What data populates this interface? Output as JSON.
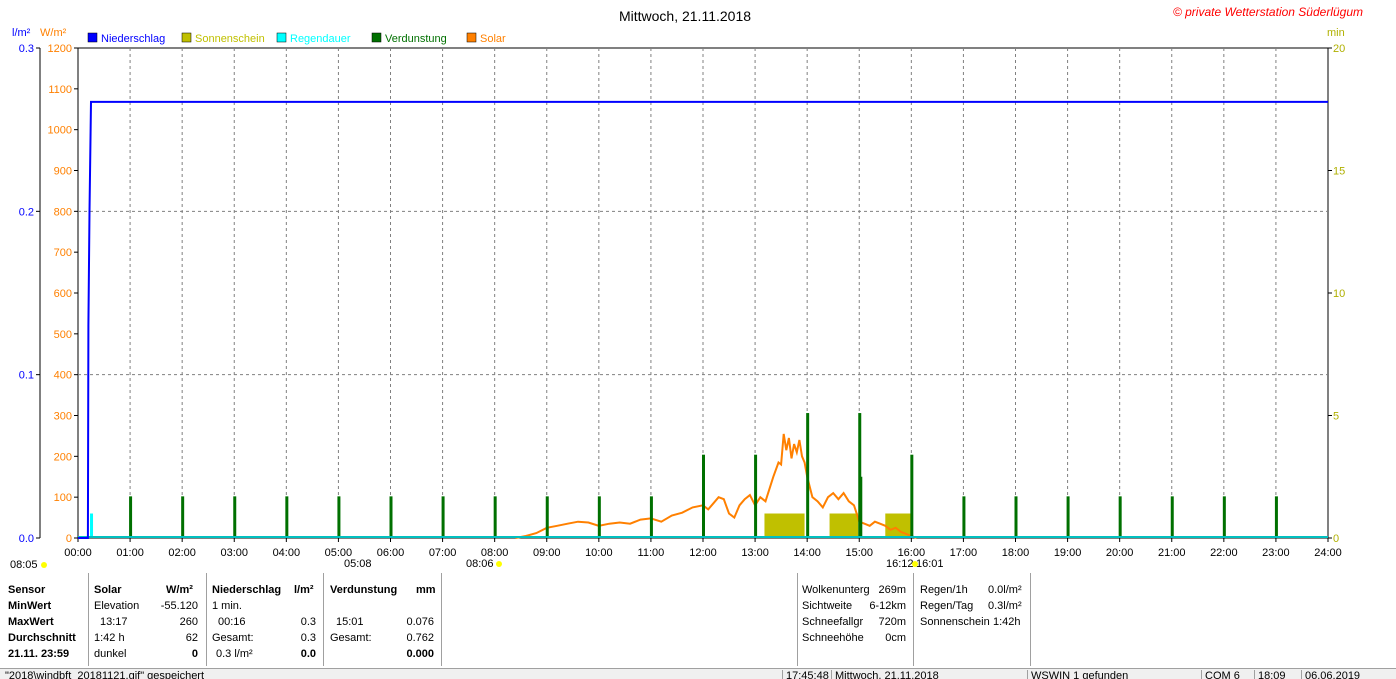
{
  "title": "Mittwoch, 21.11.2018",
  "copyright": "© private Wetterstation Süderlügum",
  "legend": [
    {
      "label": "Niederschlag",
      "color": "#0000ff"
    },
    {
      "label": "Sonnenschein",
      "color": "#c0c000"
    },
    {
      "label": "Regendauer",
      "color": "#00ffff"
    },
    {
      "label": "Verdunstung",
      "color": "#007000"
    },
    {
      "label": "Solar",
      "color": "#ff8000"
    }
  ],
  "axis_units": {
    "left_rain": "l/m²",
    "left_solar": "W/m²",
    "right": "min"
  },
  "sun_markers": {
    "sunrise": "08:05",
    "sunrise_bottom": "08:06",
    "sunset": "16:12",
    "sunset_right": "16:01",
    "other": "05:08"
  },
  "chart_data": {
    "type": "line",
    "x_range": [
      "00:00",
      "24:00"
    ],
    "x_ticks": [
      "00:00",
      "01:00",
      "02:00",
      "03:00",
      "04:00",
      "05:00",
      "06:00",
      "07:00",
      "08:00",
      "09:00",
      "10:00",
      "11:00",
      "12:00",
      "13:00",
      "14:00",
      "15:00",
      "16:00",
      "17:00",
      "18:00",
      "19:00",
      "20:00",
      "21:00",
      "22:00",
      "23:00",
      "24:00"
    ],
    "y_rain_ticks": [
      "0.0",
      "0.1",
      "0.2",
      "0.3"
    ],
    "y_rain_range": [
      0,
      0.3
    ],
    "y_solar_ticks": [
      "0",
      "100",
      "200",
      "300",
      "400",
      "500",
      "600",
      "700",
      "800",
      "900",
      "1000",
      "1100",
      "1200"
    ],
    "y_solar_range": [
      0,
      1200
    ],
    "y_min_ticks": [
      "0",
      "5",
      "10",
      "15",
      "20"
    ],
    "y_min_range": [
      0,
      20
    ],
    "grid": true,
    "legend_position": "top-left",
    "series": [
      {
        "name": "Niederschlag",
        "color": "#0000ff",
        "kind": "line",
        "axis": "rain",
        "points": [
          [
            0.0,
            0
          ],
          [
            0.19,
            0
          ],
          [
            0.2,
            0.13
          ],
          [
            0.22,
            0.2
          ],
          [
            0.25,
            0.267
          ],
          [
            24,
            0.267
          ]
        ]
      },
      {
        "name": "Regendauer",
        "color": "#00ffff",
        "kind": "bar",
        "axis": "min",
        "points": [
          [
            0.25,
            1
          ]
        ]
      },
      {
        "name": "Verdunstung",
        "color": "#007000",
        "kind": "bar",
        "axis": "min",
        "points": [
          [
            1,
            1.7
          ],
          [
            2,
            1.7
          ],
          [
            3,
            1.7
          ],
          [
            4,
            1.7
          ],
          [
            5,
            1.7
          ],
          [
            6,
            1.7
          ],
          [
            7,
            1.7
          ],
          [
            8,
            1.7
          ],
          [
            9,
            1.7
          ],
          [
            10,
            1.7
          ],
          [
            11,
            1.7
          ],
          [
            12,
            3.4
          ],
          [
            13,
            3.4
          ],
          [
            14,
            5.1
          ],
          [
            15,
            5.1
          ],
          [
            15.02,
            2.5
          ],
          [
            16,
            3.4
          ],
          [
            17,
            1.7
          ],
          [
            18,
            1.7
          ],
          [
            19,
            1.7
          ],
          [
            20,
            1.7
          ],
          [
            21,
            1.7
          ],
          [
            22,
            1.7
          ],
          [
            23,
            1.7
          ]
        ]
      },
      {
        "name": "Sonnenschein",
        "color": "#c0c000",
        "kind": "block",
        "axis": "min",
        "points": [
          [
            13.18,
            13.95,
            1
          ],
          [
            14.43,
            14.98,
            1
          ],
          [
            15.5,
            16.0,
            1
          ]
        ]
      },
      {
        "name": "Solar",
        "color": "#ff8000",
        "kind": "line",
        "axis": "solar",
        "points": [
          [
            8.4,
            0
          ],
          [
            8.6,
            5
          ],
          [
            8.8,
            12
          ],
          [
            9.0,
            25
          ],
          [
            9.2,
            30
          ],
          [
            9.4,
            35
          ],
          [
            9.6,
            40
          ],
          [
            9.8,
            38
          ],
          [
            10.0,
            30
          ],
          [
            10.2,
            35
          ],
          [
            10.4,
            38
          ],
          [
            10.6,
            35
          ],
          [
            10.8,
            45
          ],
          [
            11.0,
            48
          ],
          [
            11.2,
            40
          ],
          [
            11.4,
            55
          ],
          [
            11.6,
            62
          ],
          [
            11.8,
            75
          ],
          [
            12.0,
            80
          ],
          [
            12.1,
            70
          ],
          [
            12.2,
            85
          ],
          [
            12.3,
            100
          ],
          [
            12.4,
            95
          ],
          [
            12.5,
            60
          ],
          [
            12.6,
            50
          ],
          [
            12.7,
            80
          ],
          [
            12.8,
            95
          ],
          [
            12.9,
            105
          ],
          [
            13.0,
            80
          ],
          [
            13.1,
            100
          ],
          [
            13.2,
            90
          ],
          [
            13.35,
            150
          ],
          [
            13.45,
            185
          ],
          [
            13.5,
            180
          ],
          [
            13.55,
            255
          ],
          [
            13.6,
            215
          ],
          [
            13.65,
            245
          ],
          [
            13.7,
            195
          ],
          [
            13.75,
            230
          ],
          [
            13.8,
            210
          ],
          [
            13.85,
            240
          ],
          [
            13.9,
            200
          ],
          [
            13.95,
            185
          ],
          [
            14.0,
            150
          ],
          [
            14.1,
            100
          ],
          [
            14.2,
            90
          ],
          [
            14.3,
            75
          ],
          [
            14.4,
            100
          ],
          [
            14.5,
            110
          ],
          [
            14.6,
            95
          ],
          [
            14.7,
            110
          ],
          [
            14.8,
            90
          ],
          [
            14.9,
            80
          ],
          [
            15.0,
            40
          ],
          [
            15.1,
            35
          ],
          [
            15.2,
            30
          ],
          [
            15.3,
            40
          ],
          [
            15.4,
            35
          ],
          [
            15.5,
            30
          ],
          [
            15.6,
            20
          ],
          [
            15.7,
            25
          ],
          [
            15.8,
            15
          ],
          [
            15.9,
            10
          ],
          [
            16.0,
            5
          ],
          [
            16.1,
            0
          ]
        ]
      }
    ]
  },
  "panel": {
    "col1": {
      "r0": "Sensor",
      "r1": "MinWert",
      "r2": "MaxWert",
      "r3": "Durchschnitt",
      "r4": "21.11. 23:59"
    },
    "col2": {
      "h1": "Solar",
      "h2": "W/m²",
      "r1a": "Elevation",
      "r1b": "-55.120",
      "r2a": "13:17",
      "r2b": "260",
      "r3a": "1:42 h",
      "r3b": "62",
      "r4a": "dunkel",
      "r4b": "0"
    },
    "col3": {
      "h1": "Niederschlag",
      "h2": "l/m²",
      "r1a": "1 min.",
      "r2a": "00:16",
      "r2b": "0.3",
      "r3a": "Gesamt:",
      "r3b": "0.3",
      "r4a": "0.3 l/m²",
      "r4b": "0.0"
    },
    "col4": {
      "h1": "Verdunstung",
      "h2": "mm",
      "r2a": "15:01",
      "r2b": "0.076",
      "r3a": "Gesamt:",
      "r3b": "0.762",
      "r4b": "0.000"
    },
    "col5": {
      "r1a": "Wolkenunterg",
      "r1b": "269m",
      "r2a": "Sichtweite",
      "r2b": "6-12km",
      "r3a": "Schneefallgr",
      "r3b": "720m",
      "r4a": "Schneehöhe",
      "r4b": "0cm"
    },
    "col6": {
      "r1a": "Regen/1h",
      "r1b": "0.0l/m²",
      "r2a": "Regen/Tag",
      "r2b": "0.3l/m²",
      "r3a": "Sonnenschein",
      "r3b": "1:42h"
    }
  },
  "statusbar": [
    "\"2018\\windbft_20181121.gif\" gespeichert",
    "17:45:48",
    "Mittwoch, 21.11.2018",
    "WSWIN 1 gefunden",
    "COM 6",
    "18:09",
    "06.06.2019"
  ]
}
